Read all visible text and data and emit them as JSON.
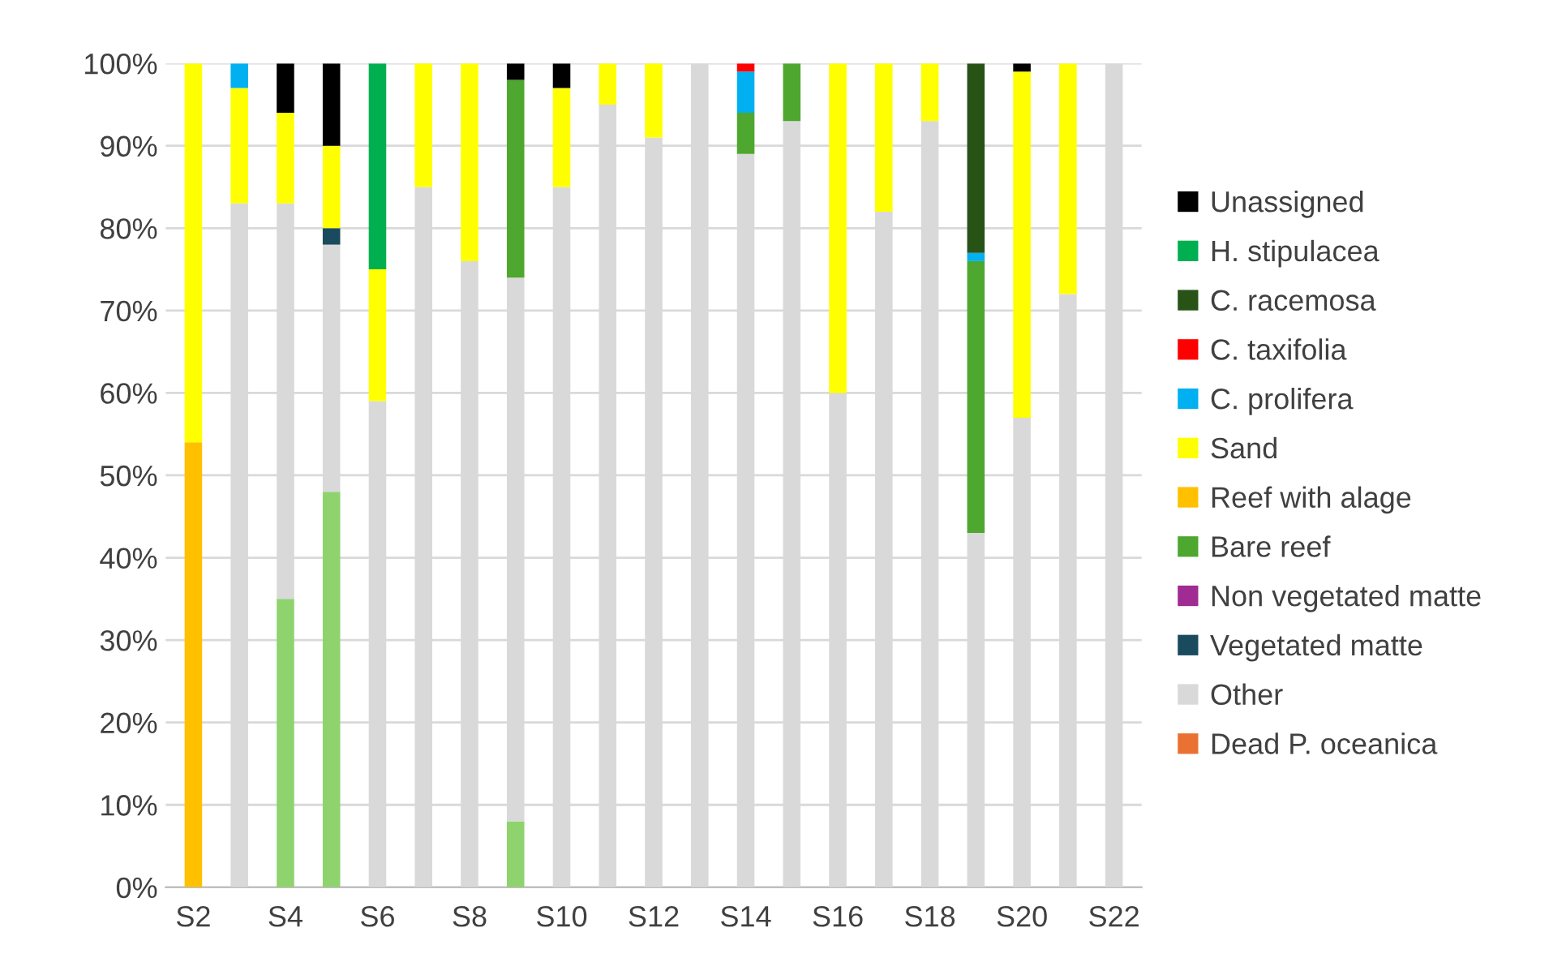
{
  "chart_data": {
    "type": "bar",
    "stacked": true,
    "categories": [
      "S2",
      null,
      "S4",
      null,
      "S6",
      null,
      "S8",
      null,
      "S10",
      null,
      "S12",
      null,
      "S14",
      null,
      "S16",
      null,
      "S18",
      null,
      "S20",
      null,
      "S22"
    ],
    "series": [
      {
        "color": "#8ed36e",
        "values": [
          0,
          0,
          35,
          48,
          0,
          0,
          0,
          8,
          0,
          0,
          0,
          0,
          0,
          0,
          0,
          0,
          0,
          0,
          0,
          0,
          0
        ]
      },
      {
        "name": "Dead P. oceanica",
        "color": "#e97132",
        "values": [
          0,
          0,
          0,
          0,
          0,
          0,
          0,
          0,
          0,
          0,
          0,
          0,
          0,
          0,
          0,
          0,
          0,
          0,
          0,
          0,
          0
        ]
      },
      {
        "name": "Other",
        "color": "#d9d9d9",
        "values": [
          0,
          83,
          48,
          30,
          59,
          85,
          76,
          66,
          85,
          95,
          91,
          100,
          89,
          93,
          60,
          82,
          93,
          43,
          57,
          72,
          100
        ]
      },
      {
        "name": "Vegetated matte",
        "color": "#1a4a5e",
        "values": [
          0,
          0,
          0,
          2,
          0,
          0,
          0,
          0,
          0,
          0,
          0,
          0,
          0,
          0,
          0,
          0,
          0,
          0,
          0,
          0,
          0
        ]
      },
      {
        "name": "Non vegetated matte",
        "color": "#a02b93",
        "values": [
          0,
          0,
          0,
          0,
          0,
          0,
          0,
          0,
          0,
          0,
          0,
          0,
          0,
          0,
          0,
          0,
          0,
          0,
          0,
          0,
          0
        ]
      },
      {
        "name": "Bare reef",
        "color": "#4ea72e",
        "values": [
          0,
          0,
          0,
          0,
          0,
          0,
          0,
          24,
          0,
          0,
          0,
          0,
          5,
          7,
          0,
          0,
          0,
          33,
          0,
          0,
          0
        ]
      },
      {
        "name": "Reef with alage",
        "color": "#ffc000",
        "values": [
          54,
          0,
          0,
          0,
          0,
          0,
          0,
          0,
          0,
          0,
          0,
          0,
          0,
          0,
          0,
          0,
          0,
          0,
          0,
          0,
          0
        ]
      },
      {
        "name": "Sand",
        "color": "#ffff00",
        "values": [
          46,
          14,
          11,
          10,
          16,
          15,
          24,
          0,
          12,
          5,
          9,
          0,
          0,
          0,
          40,
          18,
          7,
          0,
          42,
          28,
          0
        ]
      },
      {
        "name": "C. prolifera",
        "color": "#00b0f0",
        "values": [
          0,
          3,
          0,
          0,
          0,
          0,
          0,
          0,
          0,
          0,
          0,
          0,
          5,
          0,
          0,
          0,
          0,
          1,
          0,
          0,
          0
        ]
      },
      {
        "name": "C. taxifolia",
        "color": "#ff0000",
        "values": [
          0,
          0,
          0,
          0,
          0,
          0,
          0,
          0,
          0,
          0,
          0,
          0,
          1,
          0,
          0,
          0,
          0,
          0,
          0,
          0,
          0
        ]
      },
      {
        "name": "C. racemosa",
        "color": "#275317",
        "values": [
          0,
          0,
          0,
          0,
          0,
          0,
          0,
          0,
          0,
          0,
          0,
          0,
          0,
          0,
          0,
          0,
          0,
          23,
          0,
          0,
          0
        ]
      },
      {
        "name": "H. stipulacea",
        "color": "#00b050",
        "values": [
          0,
          0,
          0,
          0,
          25,
          0,
          0,
          0,
          0,
          0,
          0,
          0,
          0,
          0,
          0,
          0,
          0,
          0,
          0,
          0,
          0
        ]
      },
      {
        "name": "Unassigned",
        "color": "#000000",
        "values": [
          0,
          0,
          6,
          10,
          0,
          0,
          0,
          2,
          3,
          0,
          0,
          0,
          0,
          0,
          0,
          0,
          0,
          0,
          1,
          0,
          0
        ]
      }
    ],
    "ylim": [
      0,
      100
    ],
    "yticks": [
      {
        "value": 0,
        "label": "0%"
      },
      {
        "value": 10,
        "label": "10%"
      },
      {
        "value": 20,
        "label": "20%"
      },
      {
        "value": 30,
        "label": "30%"
      },
      {
        "value": 40,
        "label": "40%"
      },
      {
        "value": 50,
        "label": "50%"
      },
      {
        "value": 60,
        "label": "60%"
      },
      {
        "value": 70,
        "label": "70%"
      },
      {
        "value": 80,
        "label": "80%"
      },
      {
        "value": 90,
        "label": "90%"
      },
      {
        "value": 100,
        "label": "100%"
      }
    ],
    "grid": "y",
    "legend": "right"
  }
}
